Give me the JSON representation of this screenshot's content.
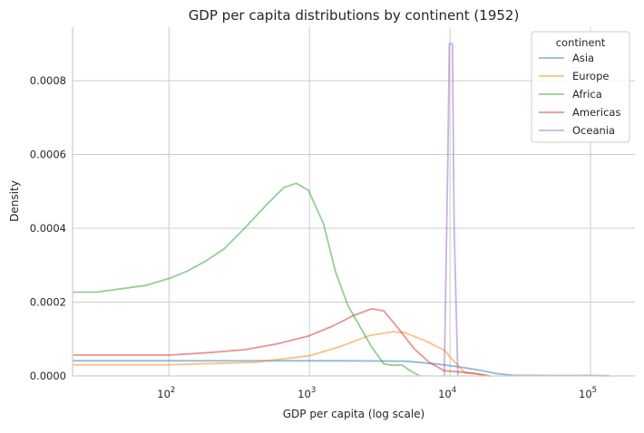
{
  "chart_data": {
    "type": "line",
    "title": "GDP per capita distributions by continent (1952)",
    "xlabel": "GDP per capita (log scale)",
    "ylabel": "Density",
    "xscale": "log",
    "xlim": [
      20.6,
      207000
    ],
    "ylim": [
      0,
      0.000945
    ],
    "grid": true,
    "x_ticks": [
      {
        "value": 100,
        "base": "10",
        "exp": "2"
      },
      {
        "value": 1000,
        "base": "10",
        "exp": "3"
      },
      {
        "value": 10000,
        "base": "10",
        "exp": "4"
      },
      {
        "value": 100000,
        "base": "10",
        "exp": "5"
      }
    ],
    "y_ticks": [
      {
        "value": 0,
        "label": "0.0000"
      },
      {
        "value": 0.0002,
        "label": "0.0002"
      },
      {
        "value": 0.0004,
        "label": "0.0004"
      },
      {
        "value": 0.0006,
        "label": "0.0006"
      },
      {
        "value": 0.0008,
        "label": "0.0008"
      }
    ],
    "legend": {
      "title": "continent",
      "placement": "top-right"
    },
    "series": [
      {
        "name": "Asia",
        "color": "#1f77b4",
        "points": [
          [
            20.6,
            4.1e-05
          ],
          [
            1778,
            4.1e-05
          ],
          [
            4810,
            4e-05
          ],
          [
            7850,
            3.27e-05
          ],
          [
            11660,
            2.45e-05
          ],
          [
            15700,
            1.64e-05
          ],
          [
            21100,
            6.6e-06
          ],
          [
            28400,
            1.7e-06
          ],
          [
            62800,
            1e-06
          ],
          [
            100000,
            1.2e-06
          ],
          [
            136000,
            5e-07
          ]
        ]
      },
      {
        "name": "Europe",
        "color": "#ff7f0e",
        "points": [
          [
            20.6,
            3.03e-05
          ],
          [
            100,
            3.03e-05
          ],
          [
            403,
            3.68e-05
          ],
          [
            1000,
            5.48e-05
          ],
          [
            1606,
            7.77e-05
          ],
          [
            2640,
            0.000109
          ],
          [
            3926,
            0.00012
          ],
          [
            4780,
            0.000117
          ],
          [
            6760,
            9.4e-05
          ],
          [
            9120,
            6.95e-05
          ],
          [
            10570,
            4.1e-05
          ],
          [
            12820,
            8.1e-06
          ],
          [
            15780,
            5e-06
          ],
          [
            19150,
            0
          ]
        ]
      },
      {
        "name": "Africa",
        "color": "#2ca02c",
        "points": [
          [
            20.6,
            0.000227
          ],
          [
            30.6,
            0.000227
          ],
          [
            67.6,
            0.000245
          ],
          [
            100,
            0.000264
          ],
          [
            135,
            0.000284
          ],
          [
            182,
            0.000311
          ],
          [
            246,
            0.000344
          ],
          [
            347,
            0.000401
          ],
          [
            490,
            0.000462
          ],
          [
            659,
            0.000511
          ],
          [
            805,
            0.000522
          ],
          [
            982,
            0.000503
          ],
          [
            1257,
            0.000413
          ],
          [
            1532,
            0.000282
          ],
          [
            1868,
            0.000192
          ],
          [
            2277,
            0.000135
          ],
          [
            2775,
            7.77e-05
          ],
          [
            3383,
            3.27e-05
          ],
          [
            3926,
            2.86e-05
          ],
          [
            4550,
            3e-05
          ],
          [
            5280,
            1.23e-05
          ],
          [
            6125,
            0
          ]
        ]
      },
      {
        "name": "Americas",
        "color": "#d62728",
        "points": [
          [
            20.6,
            5.65e-05
          ],
          [
            100,
            5.65e-05
          ],
          [
            191,
            6.3e-05
          ],
          [
            347,
            7.12e-05
          ],
          [
            598,
            8.75e-05
          ],
          [
            1000,
            0.000109
          ],
          [
            1459,
            0.000135
          ],
          [
            2061,
            0.000164
          ],
          [
            2775,
            0.000182
          ],
          [
            3383,
            0.000176
          ],
          [
            4330,
            0.000127
          ],
          [
            5560,
            7.36e-05
          ],
          [
            7110,
            3.68e-05
          ],
          [
            9120,
            1.39e-05
          ],
          [
            10520,
            1.23e-05
          ],
          [
            14220,
            8.1e-06
          ],
          [
            19150,
            0
          ]
        ]
      },
      {
        "name": "Oceania",
        "color": "#9467bd",
        "points": [
          [
            9100,
            0
          ],
          [
            9660,
            0.0006
          ],
          [
            9890,
            0.0009
          ],
          [
            10400,
            0.0009
          ],
          [
            10700,
            0.0004
          ],
          [
            11380,
            0
          ]
        ]
      }
    ]
  }
}
